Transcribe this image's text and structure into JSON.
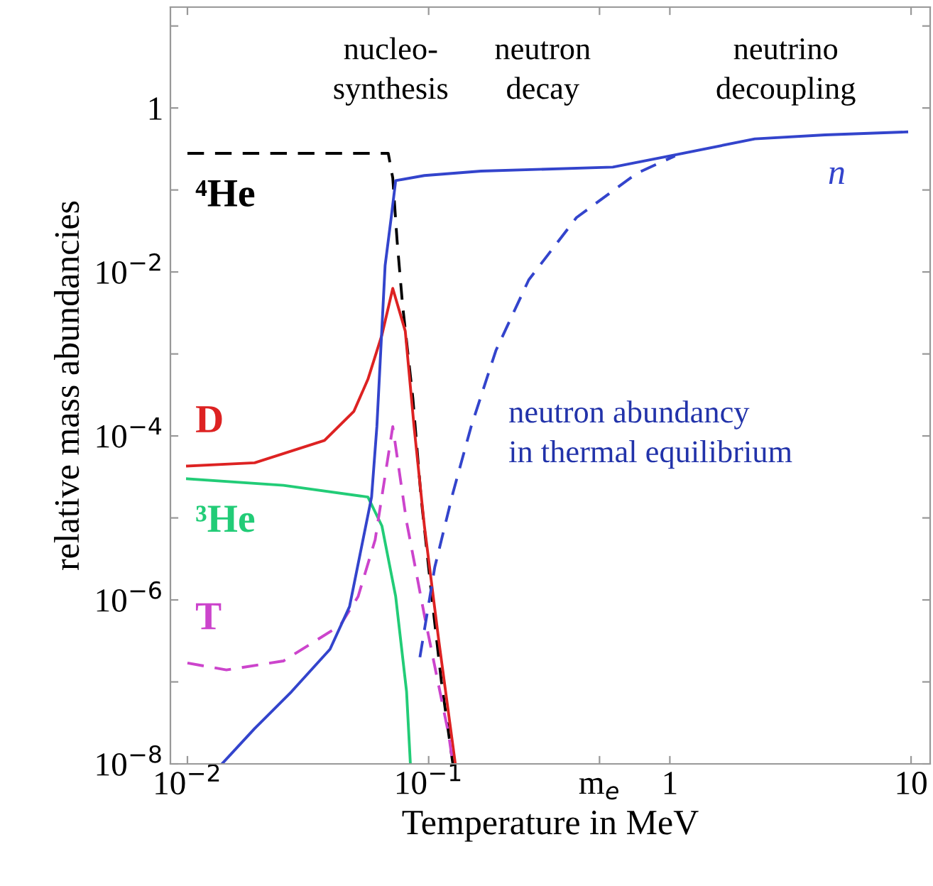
{
  "chart_data": {
    "type": "line",
    "xlabel": "Temperature in MeV",
    "ylabel": "relative mass abundancies",
    "log": "xy",
    "grid": false,
    "legend": false,
    "xlim": [
      0.0085,
      12
    ],
    "ylim": [
      1e-08,
      17
    ],
    "xticks": [
      {
        "value": 0.01,
        "label": "10$^{−2}$"
      },
      {
        "value": 0.1,
        "label": "10$^{−1}$"
      },
      {
        "value": 0.511,
        "label": "m$_{e}$"
      },
      1,
      10
    ],
    "yticks": [
      {
        "value": 1e-08,
        "label": "10$^{−8}$"
      },
      {
        "value": 1e-07,
        "label": null
      },
      {
        "value": 1e-06,
        "label": "10$^{−6}$"
      },
      {
        "value": 1e-05,
        "label": null
      },
      {
        "value": 0.0001,
        "label": "10$^{−4}$"
      },
      {
        "value": 0.001,
        "label": null
      },
      {
        "value": 0.01,
        "label": "10$^{−2}$"
      },
      {
        "value": 0.1,
        "label": null
      },
      1,
      {
        "value": 10,
        "label": null
      }
    ],
    "annotations": [
      "nucleo-\nsynthesis",
      "neutron\ndecay",
      "neutrino\ndecoupling",
      "neutron abundancy\nin thermal equilibrium"
    ],
    "series": [
      {
        "name": "⁴He",
        "color": "#000000",
        "line_style": "dashed",
        "x": [
          0.01,
          0.068,
          0.071,
          0.074,
          0.078,
          0.086,
          0.093,
          0.103,
          0.113,
          0.126
        ],
        "values": [
          0.28,
          0.28,
          0.14,
          0.024,
          0.0039,
          0.00029,
          1.8e-05,
          1.1e-06,
          1e-07,
          1e-08
        ]
      },
      {
        "name": "D",
        "color": "#dd2222",
        "line_style": "solid",
        "x": [
          0.01,
          0.019,
          0.037,
          0.049,
          0.056,
          0.064,
          0.071,
          0.08,
          0.087,
          0.096,
          0.11,
          0.129
        ],
        "values": [
          4.3e-05,
          4.7e-05,
          8.8e-05,
          0.0002,
          0.00049,
          0.0017,
          0.0063,
          0.0019,
          0.00013,
          8e-06,
          3.3e-07,
          1e-08
        ]
      },
      {
        "name": "³He",
        "color": "#22cc77",
        "line_style": "solid",
        "x": [
          0.01,
          0.025,
          0.056,
          0.064,
          0.073,
          0.081,
          0.084
        ],
        "values": [
          3e-05,
          2.5e-05,
          1.8e-05,
          8e-06,
          1.1e-06,
          7.6e-08,
          1e-08
        ]
      },
      {
        "name": "T",
        "color": "#cc44cc",
        "line_style": "dashed",
        "x": [
          0.01,
          0.0145,
          0.025,
          0.043,
          0.051,
          0.06,
          0.071,
          0.081,
          0.096,
          0.121,
          0.126
        ],
        "values": [
          1.7e-07,
          1.4e-07,
          1.8e-07,
          4.9e-07,
          1.1e-06,
          5.4e-06,
          0.00013,
          9e-06,
          6.5e-07,
          2.3e-08,
          1e-08
        ]
      },
      {
        "name": "n",
        "color": "#3344cc",
        "line_style": "solid",
        "x": [
          9.6,
          4.4,
          2.25,
          1,
          0.58,
          0.165,
          0.096,
          0.073,
          0.07,
          0.066,
          0.061,
          0.058,
          0.047,
          0.039,
          0.027,
          0.019,
          0.0139
        ],
        "values": [
          0.51,
          0.47,
          0.42,
          0.26,
          0.19,
          0.17,
          0.15,
          0.13,
          0.047,
          0.012,
          0.00013,
          1.8e-05,
          8.3e-07,
          2.5e-07,
          7.6e-08,
          2.7e-08,
          1e-08
        ]
      },
      {
        "color": "#3344cc",
        "line_style": "dashed",
        "x": [
          0.092,
          0.106,
          0.126,
          0.15,
          0.19,
          0.26,
          0.41,
          0.73,
          1.05
        ],
        "values": [
          2e-07,
          2.5e-06,
          2e-05,
          0.00013,
          0.0011,
          0.008,
          0.046,
          0.16,
          0.26
        ]
      }
    ]
  }
}
